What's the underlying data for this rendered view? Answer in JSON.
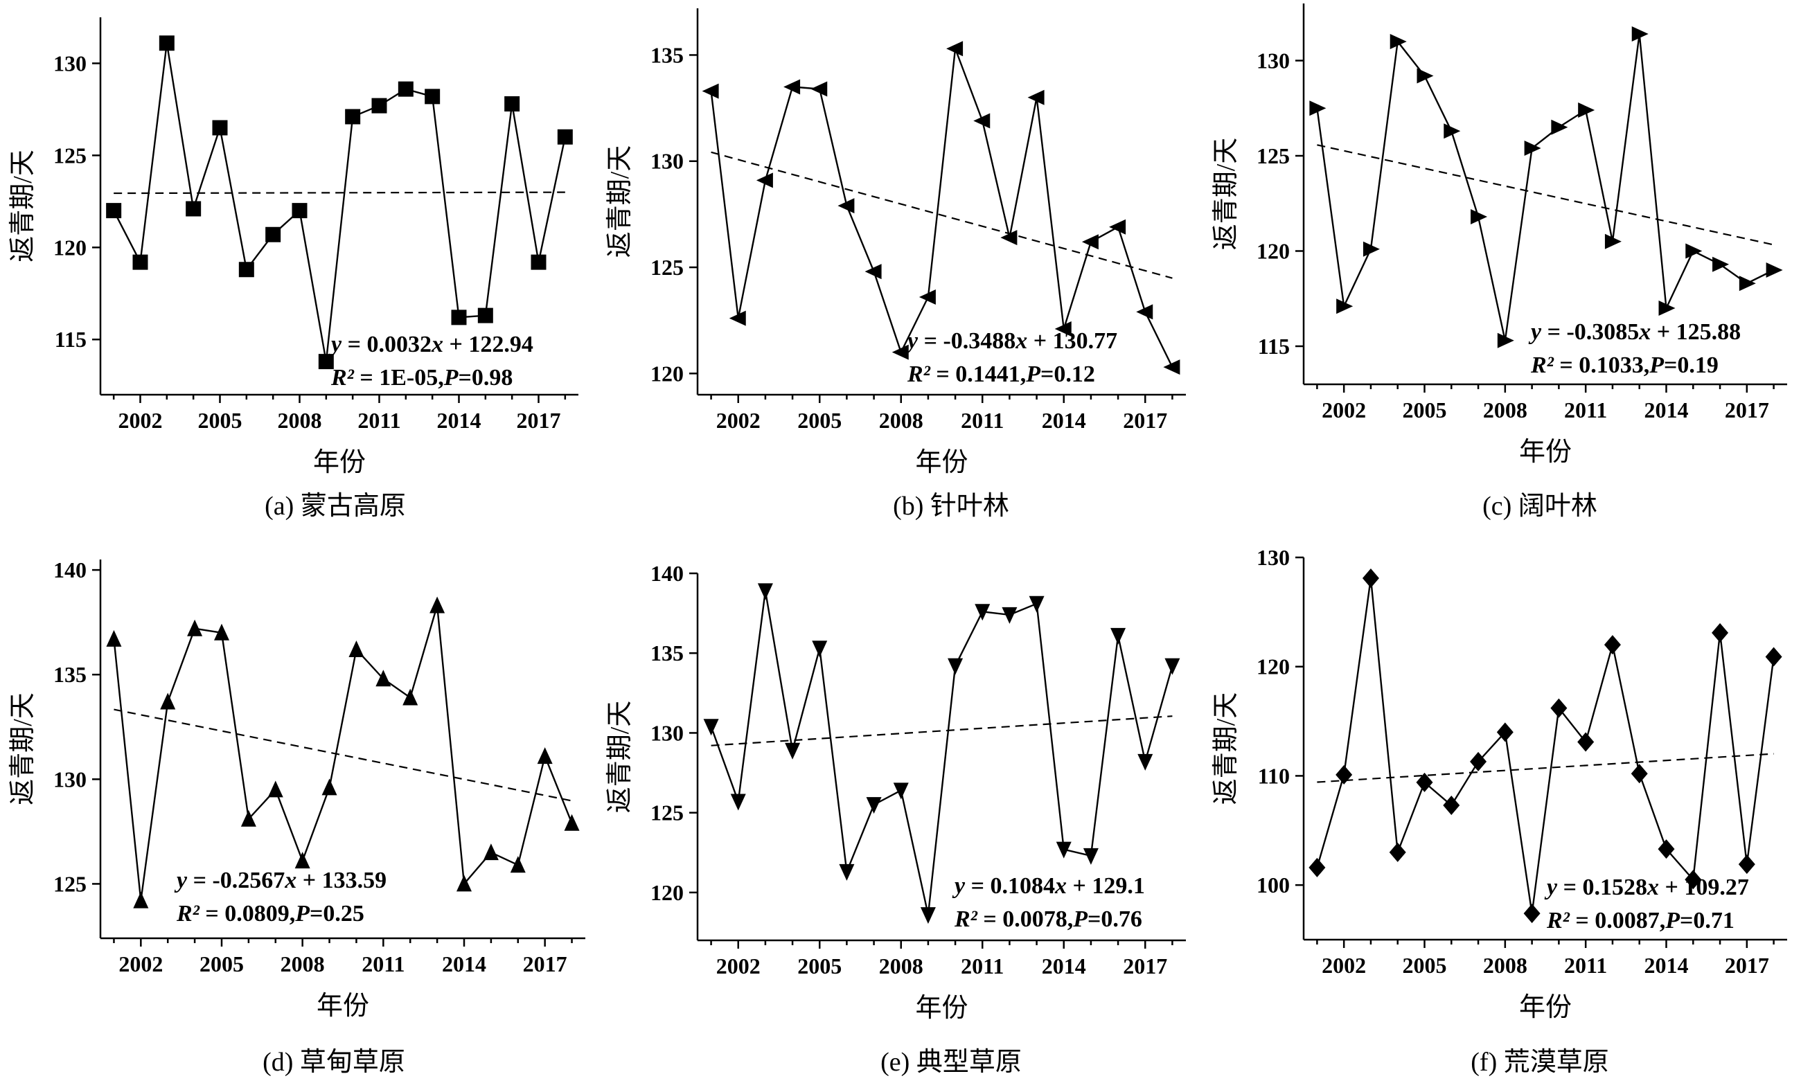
{
  "chart_data": [
    {
      "type": "line",
      "caption": "(a) 蒙古高原",
      "xlabel": "年份",
      "ylabel": "返青期/天",
      "xlim": [
        2000.5,
        2018.5
      ],
      "ylim": [
        112,
        132.5
      ],
      "yticks": [
        115,
        120,
        125,
        130
      ],
      "xticks": [
        2002,
        2005,
        2008,
        2011,
        2014,
        2017
      ],
      "marker": "square",
      "x": [
        2001,
        2002,
        2003,
        2004,
        2005,
        2006,
        2007,
        2008,
        2009,
        2010,
        2011,
        2012,
        2013,
        2014,
        2015,
        2016,
        2017,
        2018
      ],
      "values": [
        122.0,
        119.2,
        131.1,
        122.1,
        126.5,
        118.8,
        120.7,
        122.0,
        113.8,
        127.1,
        127.7,
        128.6,
        128.2,
        116.2,
        116.3,
        127.8,
        119.2,
        126.0
      ],
      "trend": {
        "slope": 0.0032,
        "intercept": 122.94
      },
      "equation": {
        "y_label": "y",
        "eq_main": " = 0.0032",
        "x_label": "x",
        "eq_rest": " + 122.94",
        "r2_label": "R²",
        "r2_value": " = 1E-05,",
        "p_label": "P",
        "p_value": "=0.98"
      }
    },
    {
      "type": "line",
      "caption": "(b) 针叶林",
      "xlabel": "年份",
      "ylabel": "返青期/天",
      "xlim": [
        2000.5,
        2018.5
      ],
      "ylim": [
        119,
        137.2
      ],
      "yticks": [
        120,
        125,
        130,
        135
      ],
      "xticks": [
        2002,
        2005,
        2008,
        2011,
        2014,
        2017
      ],
      "marker": "left-triangle",
      "x": [
        2001,
        2002,
        2003,
        2004,
        2005,
        2006,
        2007,
        2008,
        2009,
        2010,
        2011,
        2012,
        2013,
        2014,
        2015,
        2016,
        2017,
        2018
      ],
      "values": [
        133.3,
        122.6,
        129.1,
        133.5,
        133.4,
        127.9,
        124.8,
        121.0,
        123.6,
        135.3,
        131.9,
        126.4,
        133.0,
        122.1,
        126.2,
        126.9,
        122.9,
        120.3
      ],
      "trend": {
        "slope": -0.3488,
        "intercept": 130.77
      },
      "equation": {
        "y_label": "y",
        "eq_main": " = -0.3488",
        "x_label": "x",
        "eq_rest": " + 130.77",
        "r2_label": "R²",
        "r2_value": " = 0.1441,",
        "p_label": "P",
        "p_value": "=0.12"
      }
    },
    {
      "type": "line",
      "caption": "(c) 阔叶林",
      "xlabel": "年份",
      "ylabel": "返青期/天",
      "xlim": [
        2000.5,
        2018.5
      ],
      "ylim": [
        113,
        133
      ],
      "yticks": [
        115,
        120,
        125,
        130
      ],
      "xticks": [
        2002,
        2005,
        2008,
        2011,
        2014,
        2017
      ],
      "marker": "right-triangle",
      "x": [
        2001,
        2002,
        2003,
        2004,
        2005,
        2006,
        2007,
        2008,
        2009,
        2010,
        2011,
        2012,
        2013,
        2014,
        2015,
        2016,
        2017,
        2018
      ],
      "values": [
        127.5,
        117.1,
        120.1,
        131.0,
        129.2,
        126.3,
        121.8,
        115.3,
        125.4,
        126.5,
        127.4,
        120.5,
        131.4,
        117.0,
        120.0,
        119.3,
        118.3,
        119.0
      ],
      "trend": {
        "slope": -0.3085,
        "intercept": 125.88
      },
      "equation": {
        "y_label": "y",
        "eq_main": " = -0.3085",
        "x_label": "x",
        "eq_rest": " + 125.88",
        "r2_label": "R²",
        "r2_value": " = 0.1033,",
        "p_label": "P",
        "p_value": "=0.19"
      }
    },
    {
      "type": "line",
      "caption": "(d) 草甸草原",
      "xlabel": "年份",
      "ylabel": "返青期/天",
      "xlim": [
        2000.5,
        2018.5
      ],
      "ylim": [
        122.4,
        140.5
      ],
      "yticks": [
        125,
        130,
        135,
        140
      ],
      "xticks": [
        2002,
        2005,
        2008,
        2011,
        2014,
        2017
      ],
      "marker": "up-triangle",
      "x": [
        2001,
        2002,
        2003,
        2004,
        2005,
        2006,
        2007,
        2008,
        2009,
        2010,
        2011,
        2012,
        2013,
        2014,
        2015,
        2016,
        2017,
        2018
      ],
      "values": [
        136.7,
        124.2,
        133.7,
        137.2,
        137.0,
        128.1,
        129.5,
        126.1,
        129.6,
        136.2,
        134.8,
        133.9,
        138.3,
        125.0,
        126.5,
        125.9,
        131.1,
        127.9
      ],
      "trend": {
        "slope": -0.2567,
        "intercept": 133.59
      },
      "equation": {
        "y_label": "y",
        "eq_main": " = -0.2567",
        "x_label": "x",
        "eq_rest": " + 133.59",
        "r2_label": "R²",
        "r2_value": " = 0.0809,",
        "p_label": "P",
        "p_value": "=0.25"
      }
    },
    {
      "type": "line",
      "caption": "(e) 典型草原",
      "xlabel": "年份",
      "ylabel": "返青期/天",
      "xlim": [
        2000.5,
        2018.5
      ],
      "ylim": [
        117,
        140
      ],
      "yticks": [
        120,
        125,
        130,
        135,
        140
      ],
      "xticks": [
        2002,
        2005,
        2008,
        2011,
        2014,
        2017
      ],
      "marker": "down-triangle",
      "x": [
        2001,
        2002,
        2003,
        2004,
        2005,
        2006,
        2007,
        2008,
        2009,
        2010,
        2011,
        2012,
        2013,
        2014,
        2015,
        2016,
        2017,
        2018
      ],
      "values": [
        130.4,
        125.7,
        138.9,
        128.9,
        135.3,
        121.3,
        125.5,
        126.4,
        118.6,
        134.2,
        137.6,
        137.4,
        138.1,
        122.7,
        122.3,
        136.1,
        128.2,
        134.2
      ],
      "trend": {
        "slope": 0.1084,
        "intercept": 129.1
      },
      "equation": {
        "y_label": "y",
        "eq_main": " = 0.1084",
        "x_label": "x",
        "eq_rest": " + 129.1",
        "r2_label": "R²",
        "r2_value": " = 0.0078,",
        "p_label": "P",
        "p_value": "=0.76"
      }
    },
    {
      "type": "line",
      "caption": "(f) 荒漠草原",
      "xlabel": "年份",
      "ylabel": "返青期/天",
      "xlim": [
        2000.5,
        2018.5
      ],
      "ylim": [
        95,
        130
      ],
      "yticks": [
        100,
        110,
        120,
        130
      ],
      "xticks": [
        2002,
        2005,
        2008,
        2011,
        2014,
        2017
      ],
      "marker": "diamond",
      "x": [
        2001,
        2002,
        2003,
        2004,
        2005,
        2006,
        2007,
        2008,
        2009,
        2010,
        2011,
        2012,
        2013,
        2014,
        2015,
        2016,
        2017,
        2018
      ],
      "values": [
        101.6,
        110.1,
        128.1,
        103.0,
        109.4,
        107.3,
        111.3,
        114.0,
        97.4,
        116.2,
        113.1,
        122.0,
        110.2,
        103.3,
        100.5,
        123.1,
        101.9,
        120.9
      ],
      "trend": {
        "slope": 0.1528,
        "intercept": 109.27
      },
      "equation": {
        "y_label": "y",
        "eq_main": " = 0.1528",
        "x_label": "x",
        "eq_rest": " + 109.27",
        "r2_label": "R²",
        "r2_value": " = 0.0087,",
        "p_label": "P",
        "p_value": "=0.71"
      }
    }
  ]
}
